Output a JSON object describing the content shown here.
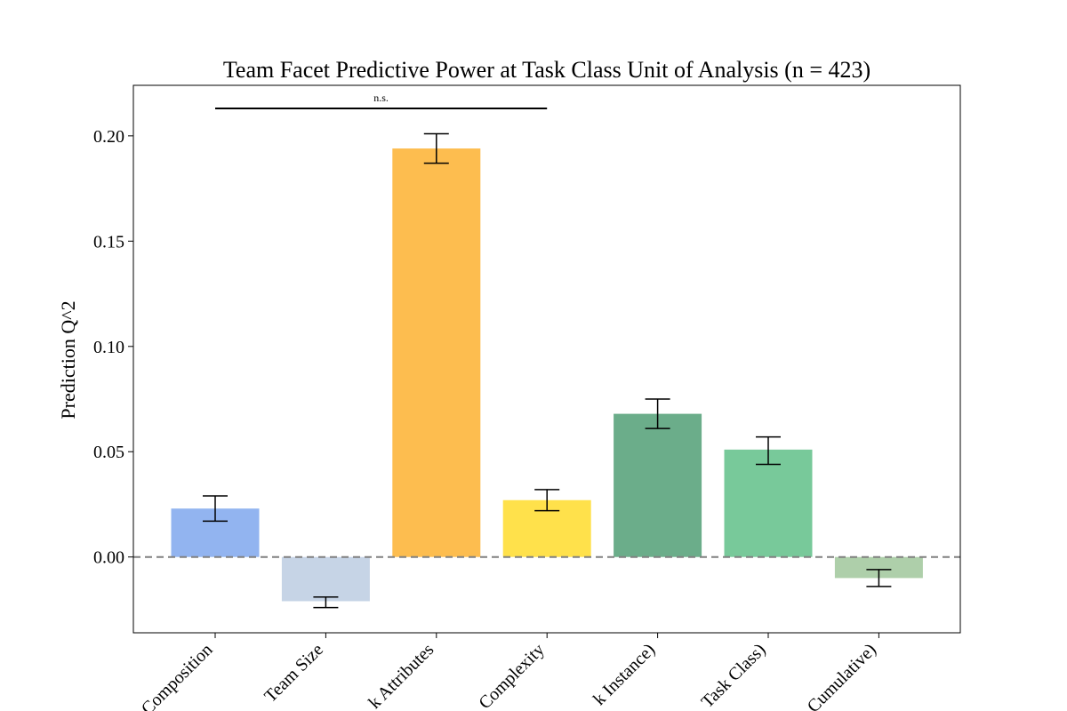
{
  "chart_data": {
    "type": "bar",
    "title": "Team Facet Predictive Power at Task Class Unit of Analysis (n = 423)",
    "xlabel": "",
    "ylabel": "Prediction Q^2",
    "ylim": [
      -0.036,
      0.224
    ],
    "yticks": [
      "0.00",
      "0.05",
      "0.10",
      "0.15",
      "0.20"
    ],
    "ytick_values": [
      0.0,
      0.05,
      0.1,
      0.15,
      0.2
    ],
    "categories": [
      "Composition",
      "Team Size",
      "k Attributes",
      "Complexity",
      "k Instance)",
      "Task Class)",
      "Cumulative)"
    ],
    "values": [
      0.023,
      -0.021,
      0.194,
      0.027,
      0.068,
      0.051,
      -0.01
    ],
    "error_low": [
      0.017,
      -0.024,
      0.187,
      0.022,
      0.061,
      0.044,
      -0.014
    ],
    "error_high": [
      0.029,
      -0.019,
      0.201,
      0.032,
      0.075,
      0.057,
      -0.006
    ],
    "colors": [
      "#92b4f0",
      "#c6d4e6",
      "#fdbd4f",
      "#ffe14b",
      "#6bad8a",
      "#78c99a",
      "#aecfaa"
    ],
    "reference_line": {
      "y": 0.0,
      "style": "dashed",
      "color": "#808080"
    },
    "significance": {
      "from": 0,
      "to": 3,
      "label": "n.s.",
      "y": 0.213
    },
    "grid": false
  }
}
